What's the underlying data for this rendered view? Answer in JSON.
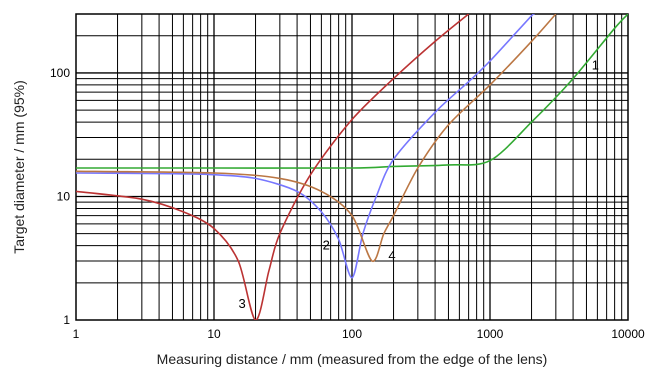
{
  "chart_data": {
    "type": "line",
    "xlabel": "Measuring distance / mm (measured from the edge of the lens)",
    "ylabel": "Target diameter / mm (95%)",
    "xscale": "log",
    "yscale": "log",
    "xlim": [
      1,
      10000
    ],
    "ylim": [
      1,
      300
    ],
    "grid": true,
    "x_ticks": [
      {
        "value": 1,
        "label": "1"
      },
      {
        "value": 10,
        "label": "10"
      },
      {
        "value": 100,
        "label": "100"
      },
      {
        "value": 1000,
        "label": "1000"
      },
      {
        "value": 10000,
        "label": "10000"
      }
    ],
    "y_ticks": [
      {
        "value": 1,
        "label": "1"
      },
      {
        "value": 10,
        "label": "10"
      },
      {
        "value": 100,
        "label": "100"
      }
    ],
    "series": [
      {
        "label": "1",
        "color": "#33aa33",
        "label_at": [
          5800,
          115
        ],
        "points": [
          [
            1,
            17
          ],
          [
            10,
            17
          ],
          [
            100,
            17
          ],
          [
            200,
            17.5
          ],
          [
            500,
            18
          ],
          [
            1000,
            19.5
          ],
          [
            2000,
            40
          ],
          [
            4000,
            90
          ],
          [
            8000,
            230
          ],
          [
            10000,
            300
          ]
        ]
      },
      {
        "label": "2",
        "color": "#7777ff",
        "label_at": [
          65,
          4
        ],
        "points": [
          [
            1,
            15.5
          ],
          [
            5,
            15.3
          ],
          [
            10,
            15
          ],
          [
            20,
            14
          ],
          [
            40,
            11
          ],
          [
            60,
            7.5
          ],
          [
            80,
            4.5
          ],
          [
            100,
            2.2
          ],
          [
            120,
            5
          ],
          [
            150,
            10
          ],
          [
            200,
            20
          ],
          [
            400,
            48
          ],
          [
            700,
            85
          ],
          [
            1000,
            125
          ],
          [
            2000,
            290
          ],
          [
            2100,
            300
          ]
        ]
      },
      {
        "label": "3",
        "color": "#bb3333",
        "label_at": [
          16,
          1.35
        ],
        "points": [
          [
            1,
            11
          ],
          [
            3,
            9.5
          ],
          [
            6,
            7.5
          ],
          [
            10,
            5.5
          ],
          [
            15,
            3
          ],
          [
            20,
            1
          ],
          [
            25,
            2.5
          ],
          [
            30,
            5
          ],
          [
            50,
            15
          ],
          [
            100,
            42
          ],
          [
            200,
            90
          ],
          [
            400,
            180
          ],
          [
            700,
            300
          ]
        ]
      },
      {
        "label": "4",
        "color": "#bb7744",
        "label_at": [
          195,
          3.3
        ],
        "points": [
          [
            1,
            16
          ],
          [
            10,
            15.5
          ],
          [
            30,
            14
          ],
          [
            60,
            11
          ],
          [
            100,
            7
          ],
          [
            140,
            3
          ],
          [
            170,
            5
          ],
          [
            200,
            7
          ],
          [
            300,
            17
          ],
          [
            500,
            38
          ],
          [
            1000,
            80
          ],
          [
            2000,
            180
          ],
          [
            3000,
            300
          ]
        ]
      }
    ]
  }
}
